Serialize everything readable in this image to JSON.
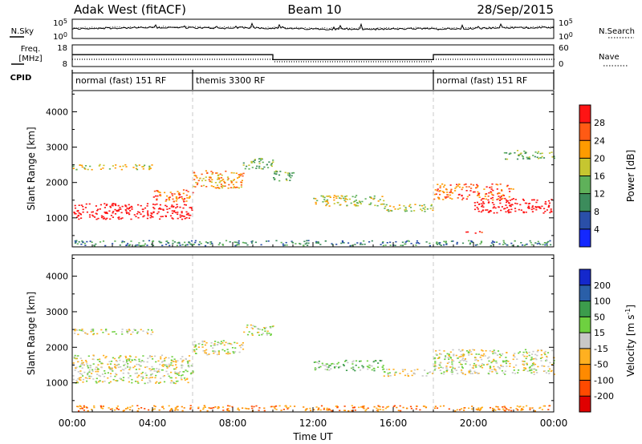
{
  "header": {
    "radar": "Adak West (fitACF)",
    "beam": "Beam 10",
    "date": "28/Sep/2015"
  },
  "top_panels": {
    "nsky_label": "N.Sky",
    "nsearch_label": "N.Search",
    "log_tick_high": "10^5",
    "log_tick_low": "10^0",
    "freq_label": "Freq.",
    "freq_unit": "[MHz]",
    "freq_ticks": [
      "18",
      "8"
    ],
    "nave_label": "Nave",
    "nave_ticks": [
      "60",
      "0"
    ],
    "cpid_label": "CPID",
    "cpid_segments": [
      {
        "start": 0,
        "end": 6,
        "label": "normal (fast) 151 RF"
      },
      {
        "start": 6,
        "end": 18,
        "label": "themis 3300 RF"
      },
      {
        "start": 18,
        "end": 24,
        "label": "normal (fast) 151 RF"
      }
    ],
    "freq_steps": [
      {
        "start": 0,
        "end": 10,
        "value": 13.5
      },
      {
        "start": 10,
        "end": 18,
        "value": 11.2
      },
      {
        "start": 18,
        "end": 24,
        "value": 13.5
      }
    ]
  },
  "chart_data": [
    {
      "type": "heatmap",
      "name": "power",
      "xlabel": "Time UT",
      "ylabel": "Slant Range [km]",
      "xlim": [
        0,
        24
      ],
      "ylim": [
        180,
        4600
      ],
      "yticks": [
        "1000",
        "2000",
        "3000",
        "4000"
      ],
      "xticks": [
        "00:00",
        "04:00",
        "08:00",
        "12:00",
        "16:00",
        "20:00",
        "00:00"
      ],
      "colorbar": {
        "label": "Power [dB]",
        "ticks": [
          "4",
          "8",
          "12",
          "16",
          "20",
          "24",
          "28"
        ],
        "colors": [
          "#1428ff",
          "#2a4fa8",
          "#3c8c5c",
          "#5fb15a",
          "#c6c630",
          "#ff9b00",
          "#ff5a14",
          "#ff1414"
        ]
      },
      "regions": [
        {
          "from": 0,
          "to": 6,
          "y": 1200,
          "height": 450,
          "level": 8
        },
        {
          "from": 4,
          "to": 6,
          "y": 1650,
          "height": 350,
          "level": 6
        },
        {
          "from": 0,
          "to": 4,
          "y": 2450,
          "height": 150,
          "level": 4
        },
        {
          "from": 6,
          "to": 8.5,
          "y": 2100,
          "height": 500,
          "level": 5
        },
        {
          "from": 8.5,
          "to": 10,
          "y": 2550,
          "height": 300,
          "level": 3
        },
        {
          "from": 10,
          "to": 11,
          "y": 2200,
          "height": 300,
          "level": 3
        },
        {
          "from": 12,
          "to": 15.5,
          "y": 1500,
          "height": 300,
          "level": 4
        },
        {
          "from": 15.5,
          "to": 18,
          "y": 1300,
          "height": 200,
          "level": 4
        },
        {
          "from": 18,
          "to": 22,
          "y": 1750,
          "height": 450,
          "level": 6
        },
        {
          "from": 20,
          "to": 24,
          "y": 1350,
          "height": 400,
          "level": 8
        },
        {
          "from": 21.5,
          "to": 24,
          "y": 2800,
          "height": 250,
          "level": 3
        },
        {
          "from": 0,
          "to": 24,
          "y": 300,
          "height": 150,
          "level": 2
        },
        {
          "from": 19.5,
          "to": 20.5,
          "y": 600,
          "height": 60,
          "level": 7
        }
      ]
    },
    {
      "type": "heatmap",
      "name": "velocity",
      "xlabel": "Time UT",
      "ylabel": "Slant Range [km]",
      "xlim": [
        0,
        24
      ],
      "ylim": [
        180,
        4600
      ],
      "yticks": [
        "1000",
        "2000",
        "3000",
        "4000"
      ],
      "xticks": [
        "00:00",
        "04:00",
        "08:00",
        "12:00",
        "16:00",
        "20:00",
        "00:00"
      ],
      "colorbar": {
        "label": "Velocity [m s^-1]",
        "ticks": [
          "200",
          "100",
          "50",
          "15",
          "-15",
          "-50",
          "-100",
          "-200"
        ],
        "colors": [
          "#1428cc",
          "#2a5fa8",
          "#3c9c4c",
          "#6ed040",
          "#c8c8c8",
          "#ffb020",
          "#ff8a00",
          "#ff4a00",
          "#e00000"
        ]
      },
      "regions": [
        {
          "from": 0,
          "to": 6,
          "y": 1400,
          "height": 800,
          "level": 4
        },
        {
          "from": 0,
          "to": 4,
          "y": 2450,
          "height": 150,
          "level": 4
        },
        {
          "from": 6,
          "to": 8.5,
          "y": 2000,
          "height": 400,
          "level": 4
        },
        {
          "from": 8.5,
          "to": 10,
          "y": 2500,
          "height": 300,
          "level": 4
        },
        {
          "from": 12,
          "to": 15.5,
          "y": 1500,
          "height": 300,
          "level": 3
        },
        {
          "from": 15.5,
          "to": 18,
          "y": 1300,
          "height": 200,
          "level": 4
        },
        {
          "from": 18,
          "to": 24,
          "y": 1600,
          "height": 700,
          "level": 4
        },
        {
          "from": 0,
          "to": 24,
          "y": 300,
          "height": 150,
          "level": 6
        }
      ]
    }
  ]
}
